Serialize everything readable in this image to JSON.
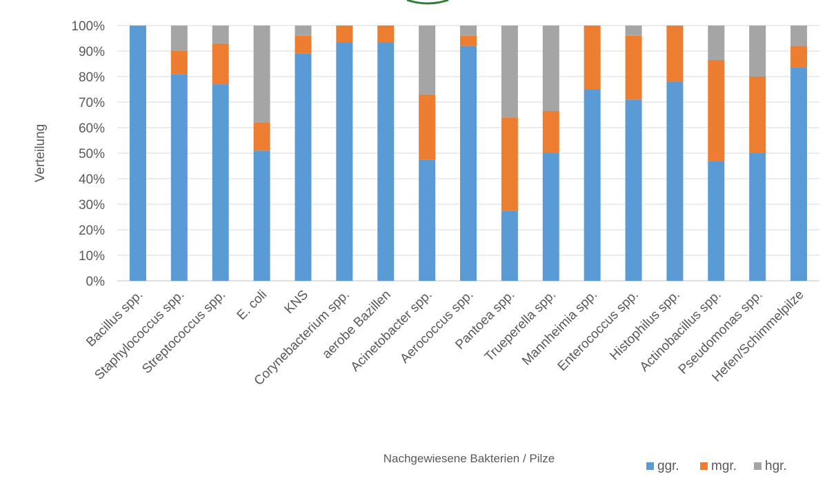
{
  "chart_data": {
    "type": "bar",
    "stacked": true,
    "percent": true,
    "categories": [
      "Bacillus spp.",
      "Staphylococcus spp.",
      "Streptococcus spp.",
      "E. coli",
      "KNS",
      "Corynebacterium spp.",
      "aerobe Bazillen",
      "Acinetobacter spp.",
      "Aerococcus spp.",
      "Pantoea spp.",
      "Trueperella spp.",
      "Mannheimia spp.",
      "Enterococcus spp.",
      "Histophilus spp.",
      "Actinobacillus spp.",
      "Pseudomonas spp.",
      "Hefen/Schimmelpilze"
    ],
    "series": [
      {
        "name": "ggr.",
        "color": "#5b9bd5",
        "values": [
          100,
          81,
          77,
          51,
          89,
          93.5,
          93.5,
          47.5,
          92,
          27.5,
          50,
          75,
          71,
          78,
          47,
          50,
          83.5
        ]
      },
      {
        "name": "mgr.",
        "color": "#ed7d31",
        "values": [
          0,
          9,
          16,
          11,
          7,
          6.5,
          6.5,
          25.5,
          4,
          36.5,
          16.5,
          25,
          25,
          22,
          39.5,
          30,
          8.5
        ]
      },
      {
        "name": "hgr.",
        "color": "#a5a5a5",
        "values": [
          0,
          10,
          7,
          38,
          4,
          0,
          0,
          27,
          4,
          36,
          33.5,
          0,
          4,
          0,
          13.5,
          20,
          8
        ]
      }
    ],
    "yticks": [
      "0%",
      "10%",
      "20%",
      "30%",
      "40%",
      "50%",
      "60%",
      "70%",
      "80%",
      "90%",
      "100%"
    ],
    "ylim": [
      0,
      100
    ],
    "ylabel": "Verteilung",
    "xlabel": "Nachgewiesene Bakterien / Pilze",
    "title": "",
    "grid": true,
    "legend_position": "bottom-right"
  }
}
